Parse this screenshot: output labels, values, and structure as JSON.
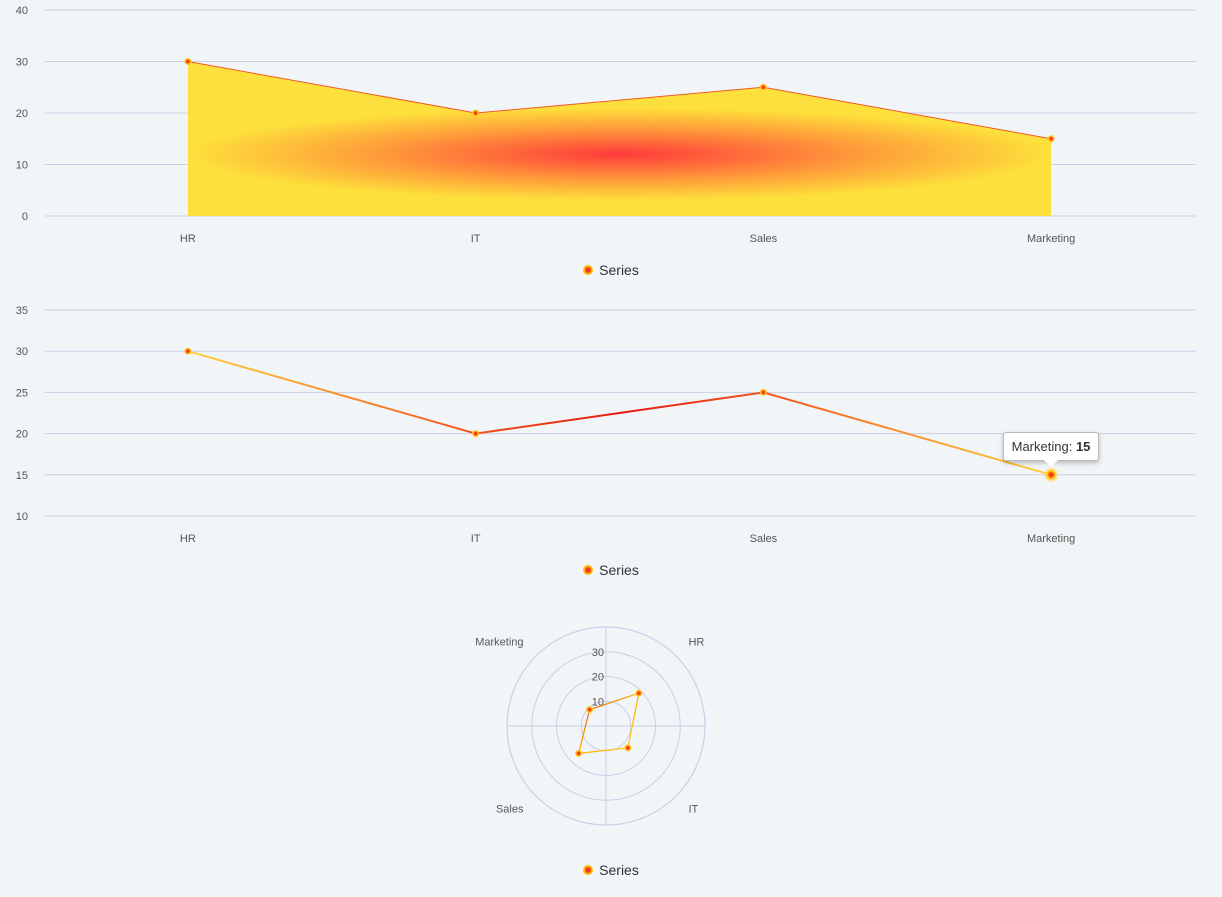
{
  "chart_data": [
    {
      "type": "area",
      "categories": [
        "HR",
        "IT",
        "Sales",
        "Marketing"
      ],
      "series": [
        {
          "name": "Series",
          "values": [
            30,
            20,
            25,
            15
          ]
        }
      ],
      "yticks": [
        0,
        10,
        20,
        30,
        40
      ],
      "ylim": [
        0,
        40
      ],
      "grid": true,
      "legend": "bottom"
    },
    {
      "type": "line",
      "categories": [
        "HR",
        "IT",
        "Sales",
        "Marketing"
      ],
      "series": [
        {
          "name": "Series",
          "values": [
            30,
            20,
            25,
            15
          ]
        }
      ],
      "yticks": [
        10,
        15,
        20,
        25,
        30,
        35
      ],
      "ylim": [
        10,
        35
      ],
      "grid": true,
      "legend": "bottom",
      "tooltip": {
        "category": "Marketing",
        "label": "Marketing: ",
        "value": "15"
      }
    },
    {
      "type": "radar",
      "categories": [
        "HR",
        "IT",
        "Sales",
        "Marketing"
      ],
      "series": [
        {
          "name": "Series",
          "values": [
            30,
            20,
            25,
            15
          ]
        }
      ],
      "rticks": [
        10,
        20,
        30
      ],
      "rlim": [
        0,
        40
      ],
      "legend": "bottom"
    }
  ],
  "colors": {
    "grid": "#c9cfe6",
    "marker_core": "#ff3a1a",
    "marker_ring": "#ffc107",
    "line_warm": "#ffd23f",
    "line_hot": "#e8170f"
  }
}
